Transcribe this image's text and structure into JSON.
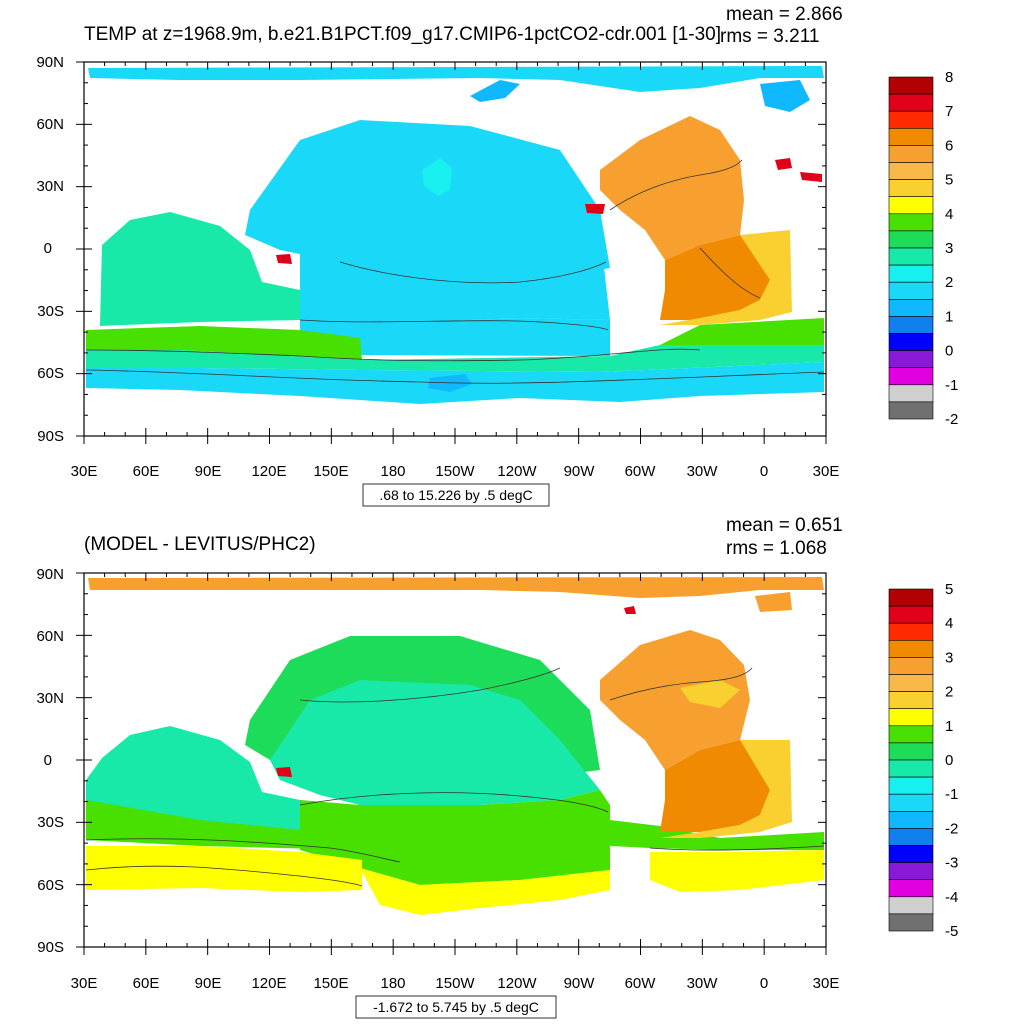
{
  "palette": {
    "land": "#ffffff",
    "frame": "#000000",
    "contour": "#333333"
  },
  "axes": {
    "lat_labels": [
      "90N",
      "60N",
      "30N",
      "0",
      "30S",
      "60S",
      "90S"
    ],
    "lon_labels": [
      "30E",
      "60E",
      "90E",
      "120E",
      "150E",
      "180",
      "150W",
      "120W",
      "90W",
      "60W",
      "30W",
      "0",
      "30E"
    ]
  },
  "panels": [
    {
      "title": "TEMP at z=1968.9m, b.e21.B1PCT.f09_g17.CMIP6-1pctCO2-cdr.001 [1-30]",
      "mean_text": "mean = 2.866",
      "rms_text": "rms = 3.211",
      "info_text": ".68 to 15.226 by .5 degC",
      "colorbar": {
        "labels": [
          "8",
          "7",
          "6",
          "5",
          "4",
          "3",
          "2",
          "1",
          "0",
          "-1",
          "-2"
        ],
        "colors": [
          "#b30000",
          "#e0001a",
          "#ff2a00",
          "#f08a00",
          "#f7a030",
          "#f8b848",
          "#f9d030",
          "#ffff00",
          "#47e000",
          "#1ddc5a",
          "#18e8a8",
          "#18f0f0",
          "#1ad8f8",
          "#10b8ff",
          "#1080f0",
          "#0000ff",
          "#8a18d8",
          "#e000e0",
          "#d0d0d0",
          "#707070"
        ]
      },
      "regions": [
        {
          "name": "arctic-band",
          "color": "#1ad8f8"
        },
        {
          "name": "arctic-deep-patch",
          "color": "#10b8ff"
        },
        {
          "name": "north-pacific",
          "color": "#1ad8f8"
        },
        {
          "name": "pacific-core",
          "color": "#18f0f0"
        },
        {
          "name": "equatorial-pacific",
          "color": "#1ad8f8"
        },
        {
          "name": "indian-ocean",
          "color": "#18e8a8"
        },
        {
          "name": "south-pacific",
          "color": "#1ad8f8"
        },
        {
          "name": "south-atlantic-warm",
          "color": "#f9d030"
        },
        {
          "name": "north-atlantic",
          "color": "#f7a030"
        },
        {
          "name": "atlantic-core",
          "color": "#f08a00"
        },
        {
          "name": "acc-band",
          "color": "#47e000"
        },
        {
          "name": "acc-band-lower",
          "color": "#18e8a8"
        },
        {
          "name": "southern-ocean",
          "color": "#1ad8f8"
        },
        {
          "name": "southern-deep-patch",
          "color": "#10b8ff"
        },
        {
          "name": "med-outflow",
          "color": "#e0001a"
        },
        {
          "name": "indonesian-hotspot",
          "color": "#e0001a"
        }
      ]
    },
    {
      "title": "(MODEL - LEVITUS/PHC2)",
      "mean_text": "mean = 0.651",
      "rms_text": "rms = 1.068",
      "info_text": "-1.672 to 5.745 by .5 degC",
      "colorbar": {
        "labels": [
          "5",
          "4",
          "3",
          "2",
          "1",
          "0",
          "-1",
          "-2",
          "-3",
          "-4",
          "-5"
        ],
        "colors": [
          "#b30000",
          "#e0001a",
          "#ff2a00",
          "#f08a00",
          "#f7a030",
          "#f8b848",
          "#f9d030",
          "#ffff00",
          "#47e000",
          "#1ddc5a",
          "#18e8a8",
          "#18f0f0",
          "#1ad8f8",
          "#10b8ff",
          "#1080f0",
          "#0000ff",
          "#8a18d8",
          "#e000e0",
          "#d0d0d0",
          "#707070"
        ]
      },
      "regions": [
        {
          "name": "arctic-band",
          "color": "#f7a030"
        },
        {
          "name": "north-pacific",
          "color": "#1ddc5a"
        },
        {
          "name": "pacific-core",
          "color": "#18e8a8"
        },
        {
          "name": "indian-ocean",
          "color": "#18e8a8"
        },
        {
          "name": "south-pacific",
          "color": "#47e000"
        },
        {
          "name": "southern-yellow",
          "color": "#ffff00"
        },
        {
          "name": "north-atlantic",
          "color": "#f7a030"
        },
        {
          "name": "atlantic-core",
          "color": "#f08a00"
        },
        {
          "name": "south-atlantic-warm",
          "color": "#f9d030"
        },
        {
          "name": "acc-band",
          "color": "#47e000"
        },
        {
          "name": "med-outflow",
          "color": "#e0001a"
        },
        {
          "name": "indonesian-hotspot",
          "color": "#e0001a"
        }
      ]
    }
  ]
}
